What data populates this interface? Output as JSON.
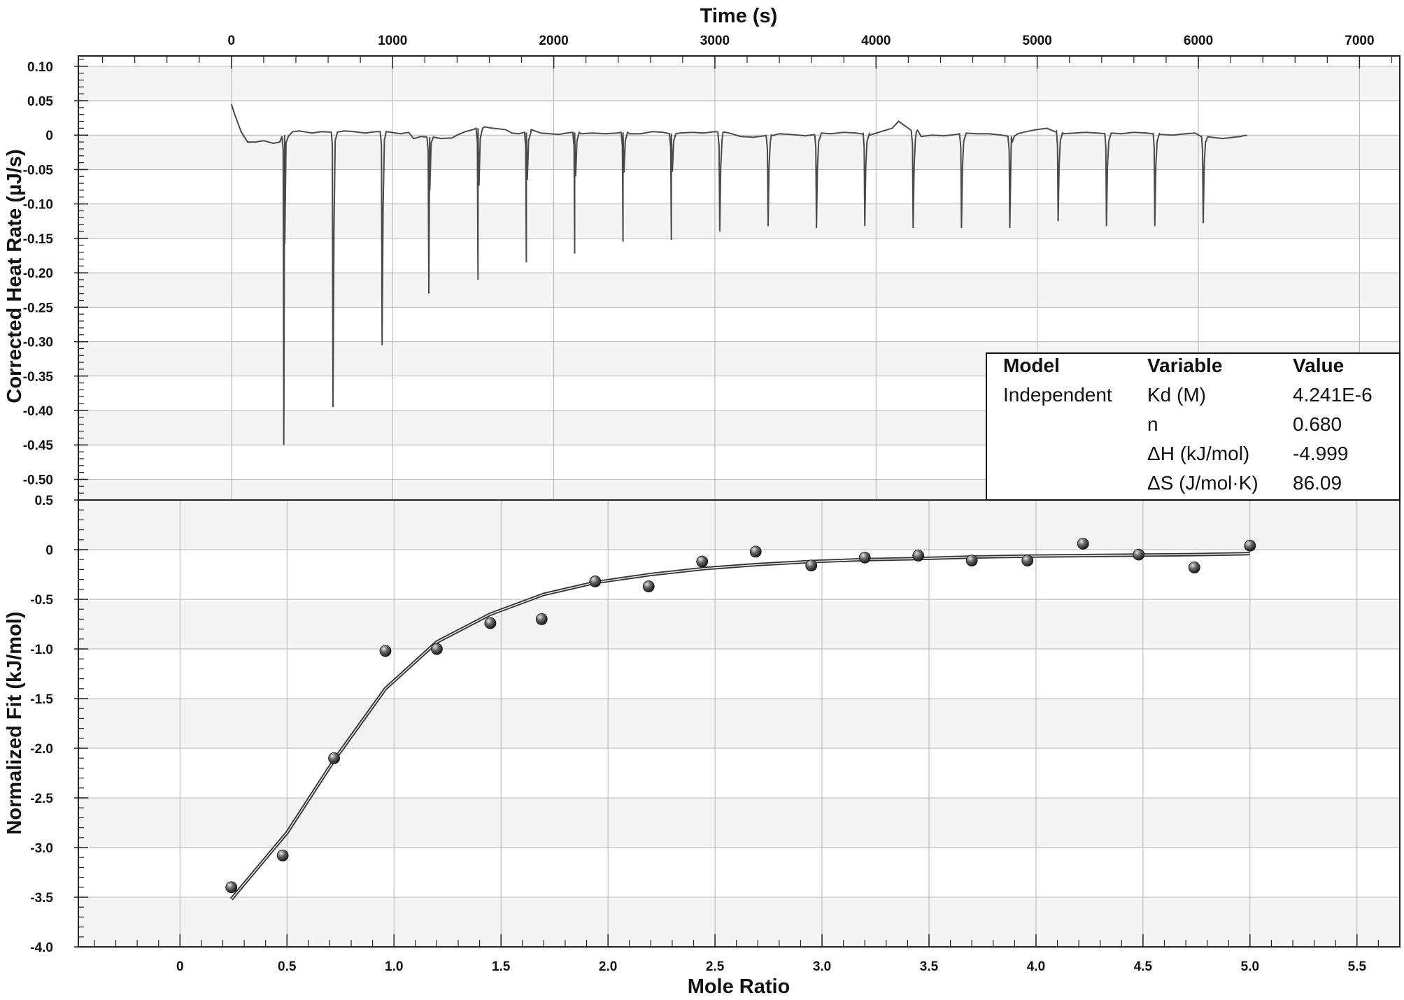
{
  "chart_data": [
    {
      "type": "line",
      "title": "",
      "xlabel": "Time (s)",
      "ylabel": "Corrected Heat Rate (µJ/s)",
      "xlim": [
        -950,
        7250
      ],
      "ylim": [
        -0.53,
        0.115
      ],
      "x_ticks": [
        0,
        1000,
        2000,
        3000,
        4000,
        5000,
        6000,
        7000
      ],
      "x_tick_labels": [
        "0",
        "1000",
        "2000",
        "3000",
        "4000",
        "5000",
        "6000",
        "7000"
      ],
      "y_ticks": [
        0.1,
        0.05,
        0,
        -0.05,
        -0.1,
        -0.15,
        -0.2,
        -0.25,
        -0.3,
        -0.35,
        -0.4,
        -0.45,
        -0.5
      ],
      "y_tick_labels": [
        "0.10",
        "0.05",
        "0",
        "-0.05",
        "-0.10",
        "-0.15",
        "-0.20",
        "-0.25",
        "-0.30",
        "-0.35",
        "-0.40",
        "-0.45",
        "-0.50"
      ],
      "grid": true,
      "line_color": "#4a4a4a",
      "baseline": {
        "x": [
          0,
          20,
          60,
          100,
          150,
          200,
          260,
          300,
          330,
          380,
          420,
          500,
          560,
          620,
          700,
          760,
          830,
          900,
          960,
          1050,
          1100,
          1130,
          1180,
          1230,
          1300,
          1370,
          1400,
          1450,
          1500,
          1530,
          1570,
          1620,
          1700,
          1740,
          1780,
          1830,
          1860,
          1920,
          1980,
          2030,
          2080,
          2130,
          2170,
          2240,
          2320,
          2390,
          2430,
          2470,
          2540,
          2610,
          2680,
          2730,
          2780,
          2860,
          2930,
          3000,
          3050,
          3090,
          3160,
          3240,
          3310,
          3350,
          3400,
          3470,
          3560,
          3620,
          3660,
          3720,
          3800,
          3880,
          3920,
          3960,
          4030,
          4100,
          4140,
          4200,
          4250,
          4280,
          4350,
          4420,
          4500,
          4560,
          4620,
          4700,
          4780,
          4840,
          4880,
          4950,
          5000,
          5060,
          5120,
          5160,
          5230,
          5300,
          5370,
          5420,
          5460,
          5520,
          5600,
          5680,
          5720,
          5760,
          5840,
          5920,
          5980,
          6020,
          6080,
          6150,
          6220,
          6260,
          6300
        ],
        "y": [
          0.045,
          0.03,
          0.005,
          -0.01,
          -0.01,
          -0.008,
          -0.012,
          -0.01,
          0.0,
          0.005,
          0.006,
          0.003,
          0.005,
          0.004,
          0.006,
          0.005,
          0.003,
          0.005,
          0.005,
          0.002,
          0.004,
          -0.005,
          -0.002,
          -0.003,
          -0.005,
          -0.004,
          0.0,
          0.005,
          0.008,
          0.01,
          0.012,
          0.01,
          0.008,
          0.003,
          0.002,
          0.004,
          0.008,
          0.003,
          0.002,
          0.001,
          0.003,
          0.004,
          0.002,
          0.003,
          0.002,
          0.003,
          0.004,
          0.002,
          0.002,
          0.005,
          0.004,
          0.002,
          0.003,
          0.004,
          0.003,
          0.005,
          0.004,
          0.003,
          -0.002,
          -0.003,
          -0.001,
          0.0,
          0.002,
          0.001,
          -0.001,
          0.0,
          0.003,
          0.002,
          0.004,
          0.003,
          0.002,
          0.0,
          0.005,
          0.01,
          0.02,
          0.01,
          0.005,
          -0.002,
          0.0,
          -0.001,
          0.001,
          0.003,
          0.002,
          0.002,
          0.0,
          -0.002,
          0.002,
          0.006,
          0.008,
          0.01,
          0.005,
          0.002,
          0.003,
          0.004,
          0.003,
          0.002,
          0.003,
          0.002,
          0.004,
          0.003,
          0.002,
          0.001,
          0.0,
          0.002,
          0.003,
          -0.002,
          -0.003,
          -0.005,
          -0.003,
          -0.002,
          0.0
        ]
      },
      "injection_peaks": {
        "x": [
          325,
          630,
          935,
          1225,
          1530,
          1830,
          2130,
          2430,
          2730,
          3030,
          3330,
          3630,
          3930,
          4230,
          4530,
          4830,
          5130,
          5430,
          5730,
          6030
        ],
        "y": [
          -0.45,
          -0.395,
          -0.305,
          -0.23,
          -0.21,
          -0.185,
          -0.172,
          -0.155,
          -0.152,
          -0.14,
          -0.132,
          -0.135,
          -0.132,
          -0.135,
          -0.135,
          -0.135,
          -0.125,
          -0.132,
          -0.132,
          -0.128
        ]
      }
    },
    {
      "type": "scatter",
      "title": "",
      "xlabel": "Mole Ratio",
      "ylabel": "Normalized Fit (kJ/mol)",
      "xlim": [
        -0.475,
        5.7
      ],
      "ylim": [
        -4.0,
        0.5
      ],
      "x_ticks": [
        0,
        0.5,
        1.0,
        1.5,
        2.0,
        2.5,
        3.0,
        3.5,
        4.0,
        4.5,
        5.0,
        5.5
      ],
      "x_tick_labels": [
        "0",
        "0.5",
        "1.0",
        "1.5",
        "2.0",
        "2.5",
        "3.0",
        "3.5",
        "4.0",
        "4.5",
        "5.0",
        "5.5"
      ],
      "y_ticks": [
        0.5,
        0,
        -0.5,
        -1.0,
        -1.5,
        -2.0,
        -2.5,
        -3.0,
        -3.5,
        -4.0
      ],
      "y_tick_labels": [
        "0.5",
        "0",
        "-0.5",
        "-1.0",
        "-1.5",
        "-2.0",
        "-2.5",
        "-3.0",
        "-3.5",
        "-4.0"
      ],
      "grid": true,
      "points": {
        "x": [
          0.24,
          0.48,
          0.72,
          0.96,
          1.2,
          1.45,
          1.69,
          1.94,
          2.19,
          2.44,
          2.69,
          2.95,
          3.2,
          3.45,
          3.7,
          3.96,
          4.22,
          4.48,
          4.74,
          5.0
        ],
        "y": [
          -3.4,
          -3.08,
          -2.1,
          -1.02,
          -1.0,
          -0.74,
          -0.7,
          -0.32,
          -0.37,
          -0.12,
          -0.02,
          -0.16,
          -0.08,
          -0.06,
          -0.11,
          -0.11,
          0.06,
          -0.05,
          -0.18,
          0.04
        ]
      },
      "fit": {
        "x": [
          0.24,
          0.5,
          0.72,
          0.96,
          1.2,
          1.45,
          1.7,
          1.94,
          2.2,
          2.45,
          2.7,
          2.95,
          3.2,
          3.45,
          3.7,
          3.96,
          4.22,
          4.48,
          4.74,
          5.0
        ],
        "y": [
          -3.52,
          -2.85,
          -2.12,
          -1.4,
          -0.93,
          -0.65,
          -0.45,
          -0.33,
          -0.25,
          -0.19,
          -0.15,
          -0.12,
          -0.1,
          -0.09,
          -0.075,
          -0.065,
          -0.06,
          -0.055,
          -0.05,
          -0.04
        ]
      }
    }
  ],
  "results_table": {
    "headers": [
      "Model",
      "Variable",
      "Value"
    ],
    "model": "Independent",
    "rows": [
      {
        "variable": "Kd (M)",
        "value": "4.241E-6"
      },
      {
        "variable": "n",
        "value": "0.680"
      },
      {
        "variable": "ΔH (kJ/mol)",
        "value": "-4.999"
      },
      {
        "variable": "ΔS (J/mol·K)",
        "value": "86.09"
      }
    ]
  },
  "colors": {
    "band_light": "#f4f4f4",
    "band_white": "#ffffff",
    "grid": "#b5b5b5",
    "frame": "#222222",
    "trace": "#4a4a4a",
    "fit_line": "#555555",
    "point": "#3a3a3a"
  }
}
